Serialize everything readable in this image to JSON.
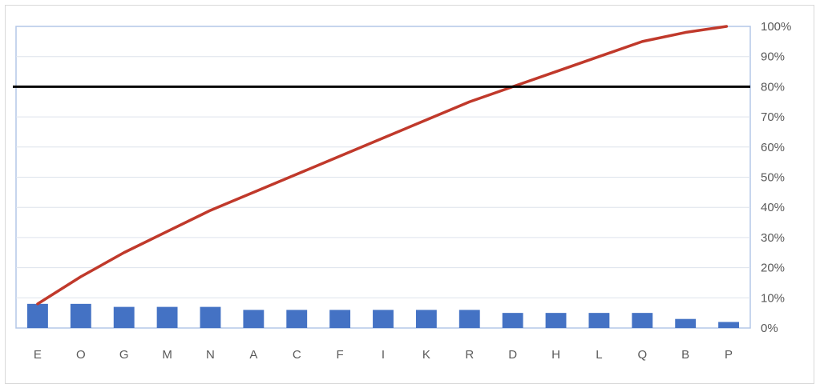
{
  "chart_data": {
    "type": "bar",
    "categories": [
      "E",
      "O",
      "G",
      "M",
      "N",
      "A",
      "C",
      "F",
      "I",
      "K",
      "R",
      "D",
      "H",
      "L",
      "Q",
      "B",
      "P"
    ],
    "series": [
      {
        "kind": "bar",
        "values": [
          8,
          8,
          7,
          7,
          7,
          6,
          6,
          6,
          6,
          6,
          6,
          5,
          5,
          5,
          5,
          3,
          2
        ],
        "color": "#4472c4"
      },
      {
        "kind": "line",
        "values": [
          8,
          17,
          25,
          32,
          39,
          45,
          51,
          57,
          63,
          69,
          75,
          80,
          85,
          90,
          95,
          98,
          100
        ],
        "color": "#c0392b"
      }
    ],
    "reference_line": {
      "value": 80,
      "color": "#000000"
    },
    "y_axis": {
      "side": "right",
      "ylim": [
        0,
        100
      ],
      "tick_labels": [
        "0%",
        "10%",
        "20%",
        "30%",
        "40%",
        "50%",
        "60%",
        "70%",
        "80%",
        "90%",
        "100%"
      ]
    },
    "grid": true,
    "legend": "none",
    "title": "",
    "xlabel": "",
    "ylabel": ""
  }
}
